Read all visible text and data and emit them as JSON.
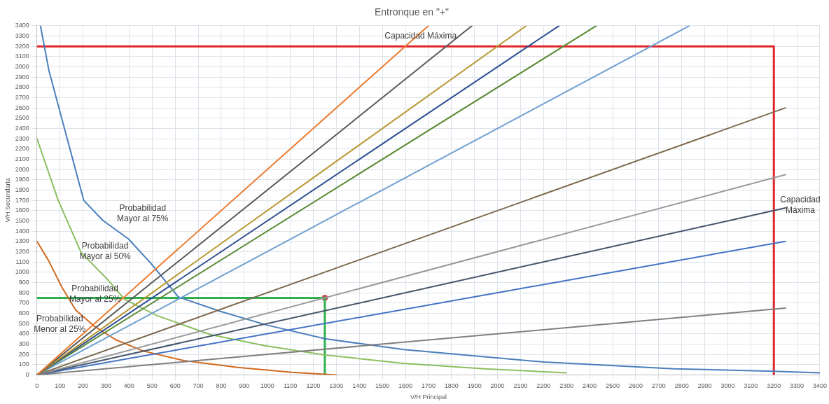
{
  "chart_data": {
    "type": "line",
    "title": "Entronque en \"+\"",
    "xlabel": "V/H Principal",
    "ylabel": "V/H Secundaria",
    "xlim": [
      0,
      3400
    ],
    "ylim": [
      0,
      3400
    ],
    "xticks": [
      0,
      100,
      200,
      300,
      400,
      500,
      600,
      700,
      800,
      900,
      1000,
      1100,
      1200,
      1300,
      1400,
      1500,
      1600,
      1700,
      1800,
      1900,
      2000,
      2100,
      2200,
      2300,
      2400,
      2500,
      2600,
      2700,
      2800,
      2900,
      3000,
      3100,
      3200,
      3300,
      3400
    ],
    "yticks": [
      0,
      100,
      200,
      300,
      400,
      500,
      600,
      700,
      800,
      900,
      1000,
      1100,
      1200,
      1300,
      1400,
      1500,
      1600,
      1700,
      1800,
      1900,
      2000,
      2100,
      2200,
      2300,
      2400,
      2500,
      2600,
      2700,
      2800,
      2900,
      3000,
      3100,
      3200,
      3300,
      3400
    ],
    "grid": true,
    "annotations": [
      "Capacidad Máxima",
      "Capacidad\nMáxima",
      "Probabilidad\nMayor al 75%",
      "Probabilidad\nMayor al 50%",
      "Probabilidad\nMayor al 25%",
      "Probabilidad\nMenor al 25%"
    ],
    "series": [
      {
        "type": "line",
        "color": "#ed7d31",
        "x": [
          0,
          1700
        ],
        "values": [
          0,
          3400
        ]
      },
      {
        "type": "line",
        "color": "#595959",
        "x": [
          0,
          1889
        ],
        "values": [
          0,
          3400
        ]
      },
      {
        "type": "line",
        "color": "#b8962e",
        "x": [
          0,
          2125
        ],
        "values": [
          0,
          3400
        ]
      },
      {
        "type": "line",
        "color": "#2f4f8f",
        "x": [
          0,
          2267
        ],
        "values": [
          0,
          3400
        ]
      },
      {
        "type": "line",
        "color": "#5b8a35",
        "x": [
          0,
          2429
        ],
        "values": [
          0,
          3400
        ]
      },
      {
        "type": "line",
        "color": "#6fa0d0",
        "x": [
          0,
          2833
        ],
        "values": [
          0,
          3400
        ]
      },
      {
        "type": "line",
        "color": "#7f6a4f",
        "x": [
          0,
          3250
        ],
        "values": [
          0,
          2600
        ]
      },
      {
        "type": "line",
        "color": "#9a9a9a",
        "x": [
          0,
          3250
        ],
        "values": [
          0,
          1950
        ]
      },
      {
        "type": "line",
        "color": "#44546a",
        "x": [
          0,
          3250
        ],
        "values": [
          0,
          1625
        ]
      },
      {
        "type": "line",
        "color": "#4472c4",
        "x": [
          0,
          3250
        ],
        "values": [
          0,
          1300
        ]
      },
      {
        "type": "line",
        "color": "#7f7f7f",
        "x": [
          0,
          3250
        ],
        "values": [
          0,
          650
        ]
      },
      {
        "type": "line",
        "color": "#4a7ebb",
        "x": [
          15,
          52,
          203,
          285,
          398,
          496,
          614,
          797,
          997,
          1250,
          1593,
          2202,
          2766,
          3200,
          3400
        ],
        "values": [
          3400,
          2963,
          1700,
          1506,
          1322,
          1083,
          759,
          618,
          486,
          352,
          246,
          125,
          59,
          35,
          20
        ]
      },
      {
        "type": "line",
        "color": "#8cbf5f",
        "x": [
          0,
          92,
          192,
          309,
          380,
          520,
          755,
          990,
          1250,
          1593,
          1945,
          2297
        ],
        "values": [
          2300,
          1700,
          1190,
          923,
          737,
          578,
          391,
          284,
          194,
          112,
          59,
          20
        ]
      },
      {
        "type": "line",
        "color": "#d2691e",
        "x": [
          0,
          51,
          110,
          168,
          250,
          344,
          462,
          638,
          872,
          1107,
          1300
        ],
        "values": [
          1300,
          1110,
          847,
          632,
          472,
          340,
          232,
          139,
          73,
          25,
          0
        ]
      },
      {
        "type": "line",
        "color": "#e0262b",
        "x": [
          0,
          3200,
          3200
        ],
        "values": [
          3200,
          3200,
          0
        ]
      },
      {
        "type": "line",
        "color": "#2eb04f",
        "x": [
          0,
          1250,
          1250
        ],
        "values": [
          750,
          750,
          0
        ]
      },
      {
        "type": "scatter",
        "color": "#c0504d",
        "marker": "circle",
        "x": [
          1250
        ],
        "values": [
          750
        ]
      }
    ]
  }
}
